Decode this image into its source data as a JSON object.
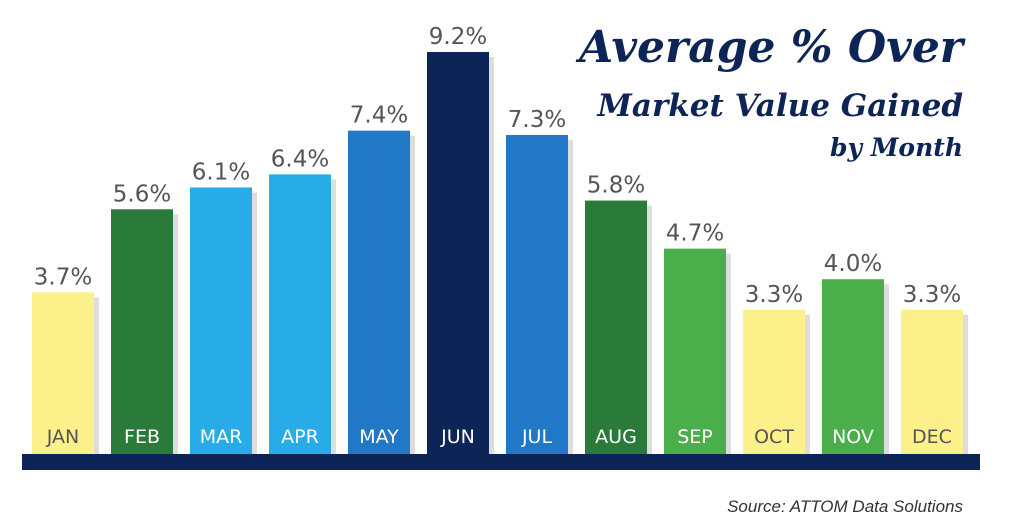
{
  "title": {
    "line1": "Average % Over",
    "line2": "Market Value Gained",
    "line3": "by Month"
  },
  "source": "Source: ATTOM Data Solutions",
  "chart_data": {
    "type": "bar",
    "categories": [
      "JAN",
      "FEB",
      "MAR",
      "APR",
      "MAY",
      "JUN",
      "JUL",
      "AUG",
      "SEP",
      "OCT",
      "NOV",
      "DEC"
    ],
    "values": [
      3.7,
      5.6,
      6.1,
      6.4,
      7.4,
      9.2,
      7.3,
      5.8,
      4.7,
      3.3,
      4.0,
      3.3
    ],
    "value_labels": [
      "3.7%",
      "5.6%",
      "6.1%",
      "6.4%",
      "7.4%",
      "9.2%",
      "7.3%",
      "5.8%",
      "4.7%",
      "3.3%",
      "4.0%",
      "3.3%"
    ],
    "bar_colors": [
      "#fbf08a",
      "#2a7a3a",
      "#28ace8",
      "#28ace8",
      "#2078c6",
      "#0d2456",
      "#2078c6",
      "#2a7a3a",
      "#4aae4a",
      "#fbf08a",
      "#4aae4a",
      "#fbf08a"
    ],
    "label_colors": [
      "#555555",
      "#ffffff",
      "#ffffff",
      "#ffffff",
      "#ffffff",
      "#ffffff",
      "#ffffff",
      "#ffffff",
      "#ffffff",
      "#555555",
      "#ffffff",
      "#555555"
    ],
    "baseline_color": "#0d2456",
    "ylim": [
      0,
      9.2
    ],
    "grid": false,
    "legend": "none"
  }
}
